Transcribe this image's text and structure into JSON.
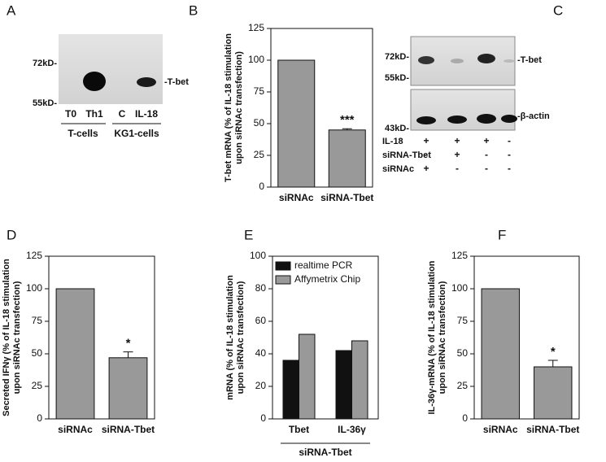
{
  "blots": [
    {
      "panel": "A",
      "markers": [
        "72kD-",
        "55kD-"
      ],
      "band_label": "-T-bet",
      "lanes": [
        "T0",
        "Th1",
        "C",
        "IL-18"
      ],
      "groups": [
        "T-cells",
        "KG1-cells"
      ]
    },
    {
      "panel": "C",
      "markers": [
        "72kD-",
        "55kD-",
        "43kD-"
      ],
      "band_labels": [
        "-T-bet",
        "-β-actin"
      ],
      "rows": [
        {
          "label": "IL-18",
          "signs": [
            "+",
            "+",
            "+",
            "-"
          ]
        },
        {
          "label": "siRNA-Tbet",
          "signs": [
            "-",
            "+",
            "-",
            "-"
          ]
        },
        {
          "label": "siRNAc",
          "signs": [
            "+",
            "-",
            "-",
            "-"
          ]
        }
      ]
    }
  ],
  "chart_data": [
    {
      "type": "bar",
      "panel": "B",
      "ylabel": [
        "T-bet mRNA (% of IL-18 stimulation",
        "upon siRNAc transfection)"
      ],
      "categories": [
        "siRNAc",
        "siRNA-Tbet"
      ],
      "values": [
        100,
        45
      ],
      "errors": [
        null,
        1
      ],
      "value_annotations": [
        null,
        "***"
      ],
      "color": "#999999",
      "ylim": [
        0,
        125
      ],
      "yticks": [
        0,
        25,
        50,
        75,
        100,
        125
      ]
    },
    {
      "type": "bar",
      "panel": "D",
      "ylabel": [
        "Secreted IFNγ (% of IL-18 stimulation",
        "upon siRNAc transfection)"
      ],
      "categories": [
        "siRNAc",
        "siRNA-Tbet"
      ],
      "values": [
        100,
        47
      ],
      "errors": [
        null,
        4.5
      ],
      "value_annotations": [
        null,
        "*"
      ],
      "color": "#999999",
      "ylim": [
        0,
        125
      ],
      "yticks": [
        0,
        25,
        50,
        75,
        100,
        125
      ]
    },
    {
      "type": "grouped_bar",
      "panel": "E",
      "ylabel": [
        "mRNA (% of IL-18 stimulation",
        "upon siRNAc transfection)"
      ],
      "categories": [
        "Tbet",
        "IL-36γ"
      ],
      "group_label": "siRNA-Tbet",
      "series": [
        {
          "name": "realtime PCR",
          "color": "#111111",
          "values": [
            36,
            42
          ]
        },
        {
          "name": "Affymetrix Chip",
          "color": "#999999",
          "values": [
            52,
            48
          ]
        }
      ],
      "legend": "upper left",
      "ylim": [
        0,
        100
      ],
      "yticks": [
        0,
        20,
        40,
        60,
        80,
        100
      ]
    },
    {
      "type": "bar",
      "panel": "F",
      "ylabel": [
        "IL-36γ-mRNA (% of IL-18 stimulation",
        "upon siRNAc transfection)"
      ],
      "categories": [
        "siRNAc",
        "siRNA-Tbet"
      ],
      "values": [
        100,
        40
      ],
      "errors": [
        null,
        5
      ],
      "value_annotations": [
        null,
        "*"
      ],
      "color": "#999999",
      "ylim": [
        0,
        125
      ],
      "yticks": [
        0,
        25,
        50,
        75,
        100,
        125
      ]
    }
  ]
}
